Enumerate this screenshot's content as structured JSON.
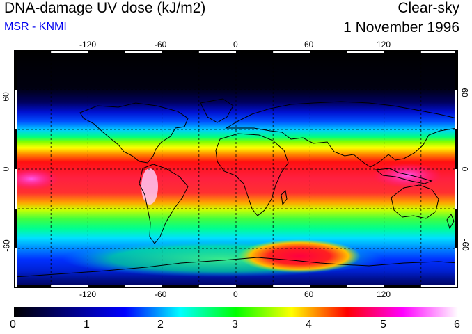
{
  "header": {
    "title": "DNA-damage UV dose (kJ/m2)",
    "credit": "MSR - KNMI",
    "sky_condition": "Clear-sky",
    "date": "1 November 1996"
  },
  "map": {
    "projection": "equirectangular",
    "lon_range": [
      -180,
      180
    ],
    "lat_range": [
      -90,
      90
    ],
    "lon_ticks": [
      -120,
      -60,
      0,
      60,
      120
    ],
    "lat_ticks": [
      60,
      0,
      -60
    ],
    "lon_tick_labels": [
      "-120",
      "-60",
      "0",
      "60",
      "120"
    ],
    "lat_tick_labels_left": [
      "60",
      "0",
      "-60"
    ],
    "lat_tick_labels_right": [
      "60",
      "0",
      "-60"
    ],
    "gridlines": "dashed",
    "gridline_spacing_deg": 30,
    "coastlines": true
  },
  "colorbar": {
    "range": [
      0,
      6
    ],
    "tick_labels": [
      "0",
      "1",
      "2",
      "3",
      "4",
      "5",
      "6"
    ],
    "colors": [
      "#000000",
      "#000080",
      "#0000ff",
      "#00ffff",
      "#00ff00",
      "#ffff00",
      "#ff0000",
      "#ff00ff",
      "#ffffff"
    ]
  }
}
